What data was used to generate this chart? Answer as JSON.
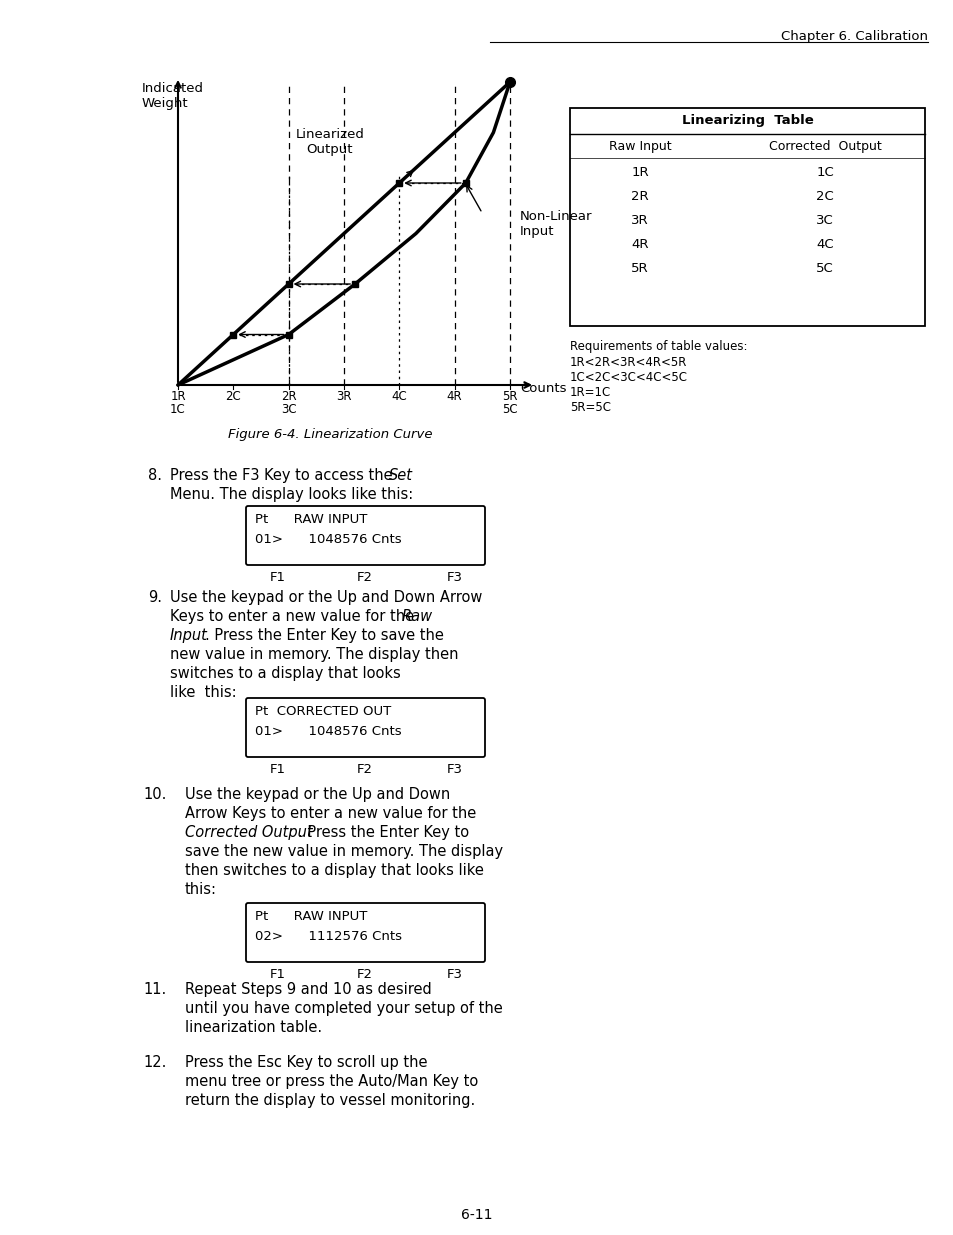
{
  "page_title": "Chapter 6. Calibration",
  "page_number": "6-11",
  "fig_caption": "Figure 6-4. Linearization Curve",
  "table_title": "Linearizing  Table",
  "col1_header": "Raw Input",
  "col2_header": "Corrected  Output",
  "table_rows": [
    [
      "1R",
      "1C"
    ],
    [
      "2R",
      "2C"
    ],
    [
      "3R",
      "3C"
    ],
    [
      "4R",
      "4C"
    ],
    [
      "5R",
      "5C"
    ]
  ],
  "table_note_title": "Requirements of table values:",
  "table_notes": [
    "1R<2R<3R<4R<5R",
    "1C<2C<3C<4C<5C",
    "1R=1C",
    "5R=5C"
  ],
  "graph_ylabel": "Indicated\nWeight",
  "graph_xlabel": "Counts",
  "xtick_labels": [
    [
      "1R",
      "1C"
    ],
    [
      "2C",
      ""
    ],
    [
      "2R",
      "3C"
    ],
    [
      "3R",
      ""
    ],
    [
      "4C",
      ""
    ],
    [
      "4R",
      ""
    ],
    [
      "5R",
      "5C"
    ]
  ],
  "bg_color": "#ffffff",
  "text_color": "#000000"
}
